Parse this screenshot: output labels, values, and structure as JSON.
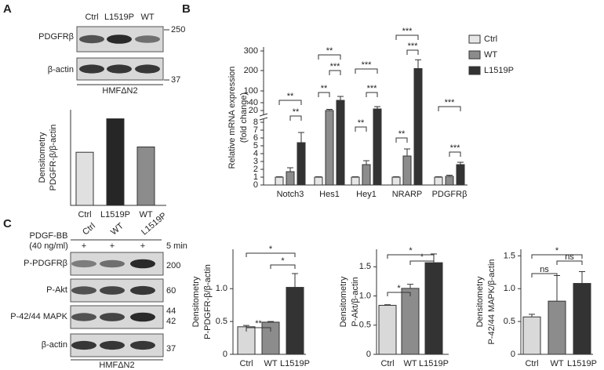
{
  "panels": {
    "a": "A",
    "b": "B",
    "c": "C"
  },
  "blots_a": {
    "lanes": [
      "Ctrl",
      "L1519P",
      "WT"
    ],
    "rows": [
      "PDGFRβ",
      "β-actin"
    ],
    "markers": [
      "250",
      "37"
    ],
    "cell": "HMFΔN2"
  },
  "blots_c": {
    "lanes": [
      "Ctrl",
      "WT",
      "L1519P"
    ],
    "treatment": [
      "PDGF-BB",
      "(40 ng/ml)"
    ],
    "plus": [
      "+",
      "+",
      "+"
    ],
    "time": "5 min",
    "rows": [
      "P-PDGFRβ",
      "P-Akt",
      "P-42/44 MAPK",
      "β-actin"
    ],
    "markers": [
      "200",
      "60",
      "44",
      "42",
      "37"
    ],
    "cell": "HMFΔN2"
  },
  "chart_data": [
    {
      "type": "bar",
      "ylabel": [
        "Densitometry",
        "PDGFR-β/β-actin"
      ],
      "categories": [
        "Ctrl",
        "L1519P",
        "WT"
      ],
      "values": [
        1,
        1.63,
        1.1
      ],
      "colors": [
        "#e0e0e0",
        "#262626",
        "#8c8c8c"
      ],
      "ylim": [
        0,
        1.8
      ]
    },
    {
      "type": "grouped",
      "ylabel": [
        "Relative mRNA expression",
        "(fold change)"
      ],
      "categories": [
        "Notch3",
        "Hes1",
        "Hey1",
        "NRARP",
        "PDGFRβ"
      ],
      "series": [
        {
          "name": "Ctrl",
          "color": "#e6e6e6",
          "values": [
            1,
            1,
            1,
            1,
            1
          ],
          "errors": [
            0.05,
            0.05,
            0.05,
            0.05,
            0.05
          ]
        },
        {
          "name": "WT",
          "color": "#8c8c8c",
          "values": [
            1.7,
            20,
            2.6,
            3.7,
            1.1
          ],
          "errors": [
            0.5,
            3,
            0.5,
            0.9,
            0.15
          ]
        },
        {
          "name": "L1519P",
          "color": "#333333",
          "values": [
            5.4,
            52,
            24,
            210,
            2.6
          ],
          "errors": [
            1.3,
            20,
            6,
            45,
            0.3
          ]
        }
      ],
      "ylim": [
        0,
        300
      ],
      "yticks": [
        0,
        1,
        2,
        3,
        4,
        5,
        6,
        7,
        8,
        20,
        40,
        100,
        200,
        300
      ],
      "annotations": [
        "**",
        "**",
        "**",
        "**",
        "***",
        "***",
        "**",
        "***",
        "***",
        "**",
        "***",
        "***",
        "***"
      ]
    },
    {
      "type": "bar",
      "ylabel": [
        "Densitometry",
        "P-PDGFR-β/β-actin"
      ],
      "categories": [
        "Ctrl",
        "WT",
        "L1519P"
      ],
      "values": [
        0.42,
        0.49,
        1.02
      ],
      "errors": [
        0.02,
        0.01,
        0.21
      ],
      "colors": [
        "#d9d9d9",
        "#8c8c8c",
        "#333333"
      ],
      "ylim": [
        0,
        1.6
      ],
      "yticks": [
        0,
        0.5,
        {
          "value": 1,
          "label": "1.0"
        }
      ],
      "annotations": [
        "**",
        "*",
        "*"
      ]
    },
    {
      "type": "bar",
      "ylabel": [
        "Densitometry",
        "P-Akt/β-actin"
      ],
      "categories": [
        "Ctrl",
        "WT",
        "L1519P"
      ],
      "values": [
        0.84,
        1.13,
        1.57
      ],
      "errors": [
        0.01,
        0.07,
        0.15
      ],
      "colors": [
        "#d9d9d9",
        "#8c8c8c",
        "#333333"
      ],
      "ylim": [
        0,
        1.8
      ],
      "yticks": [
        0,
        0.5,
        {
          "value": 1,
          "label": "1.0"
        },
        1.5
      ],
      "annotations": [
        "*",
        "*",
        "*"
      ]
    },
    {
      "type": "bar",
      "ylabel": [
        "Densitometry",
        "P-42/44 MAPK/β-actin"
      ],
      "categories": [
        "Ctrl",
        "WT",
        "L1519P"
      ],
      "values": [
        0.57,
        0.81,
        1.08
      ],
      "errors": [
        0.04,
        0.39,
        0.18
      ],
      "colors": [
        "#d9d9d9",
        "#8c8c8c",
        "#333333"
      ],
      "ylim": [
        0,
        1.6
      ],
      "yticks": [
        0,
        0.5,
        {
          "value": 1,
          "label": "1.0"
        },
        1.5
      ],
      "annotations": [
        "ns",
        "ns",
        "*"
      ]
    }
  ]
}
